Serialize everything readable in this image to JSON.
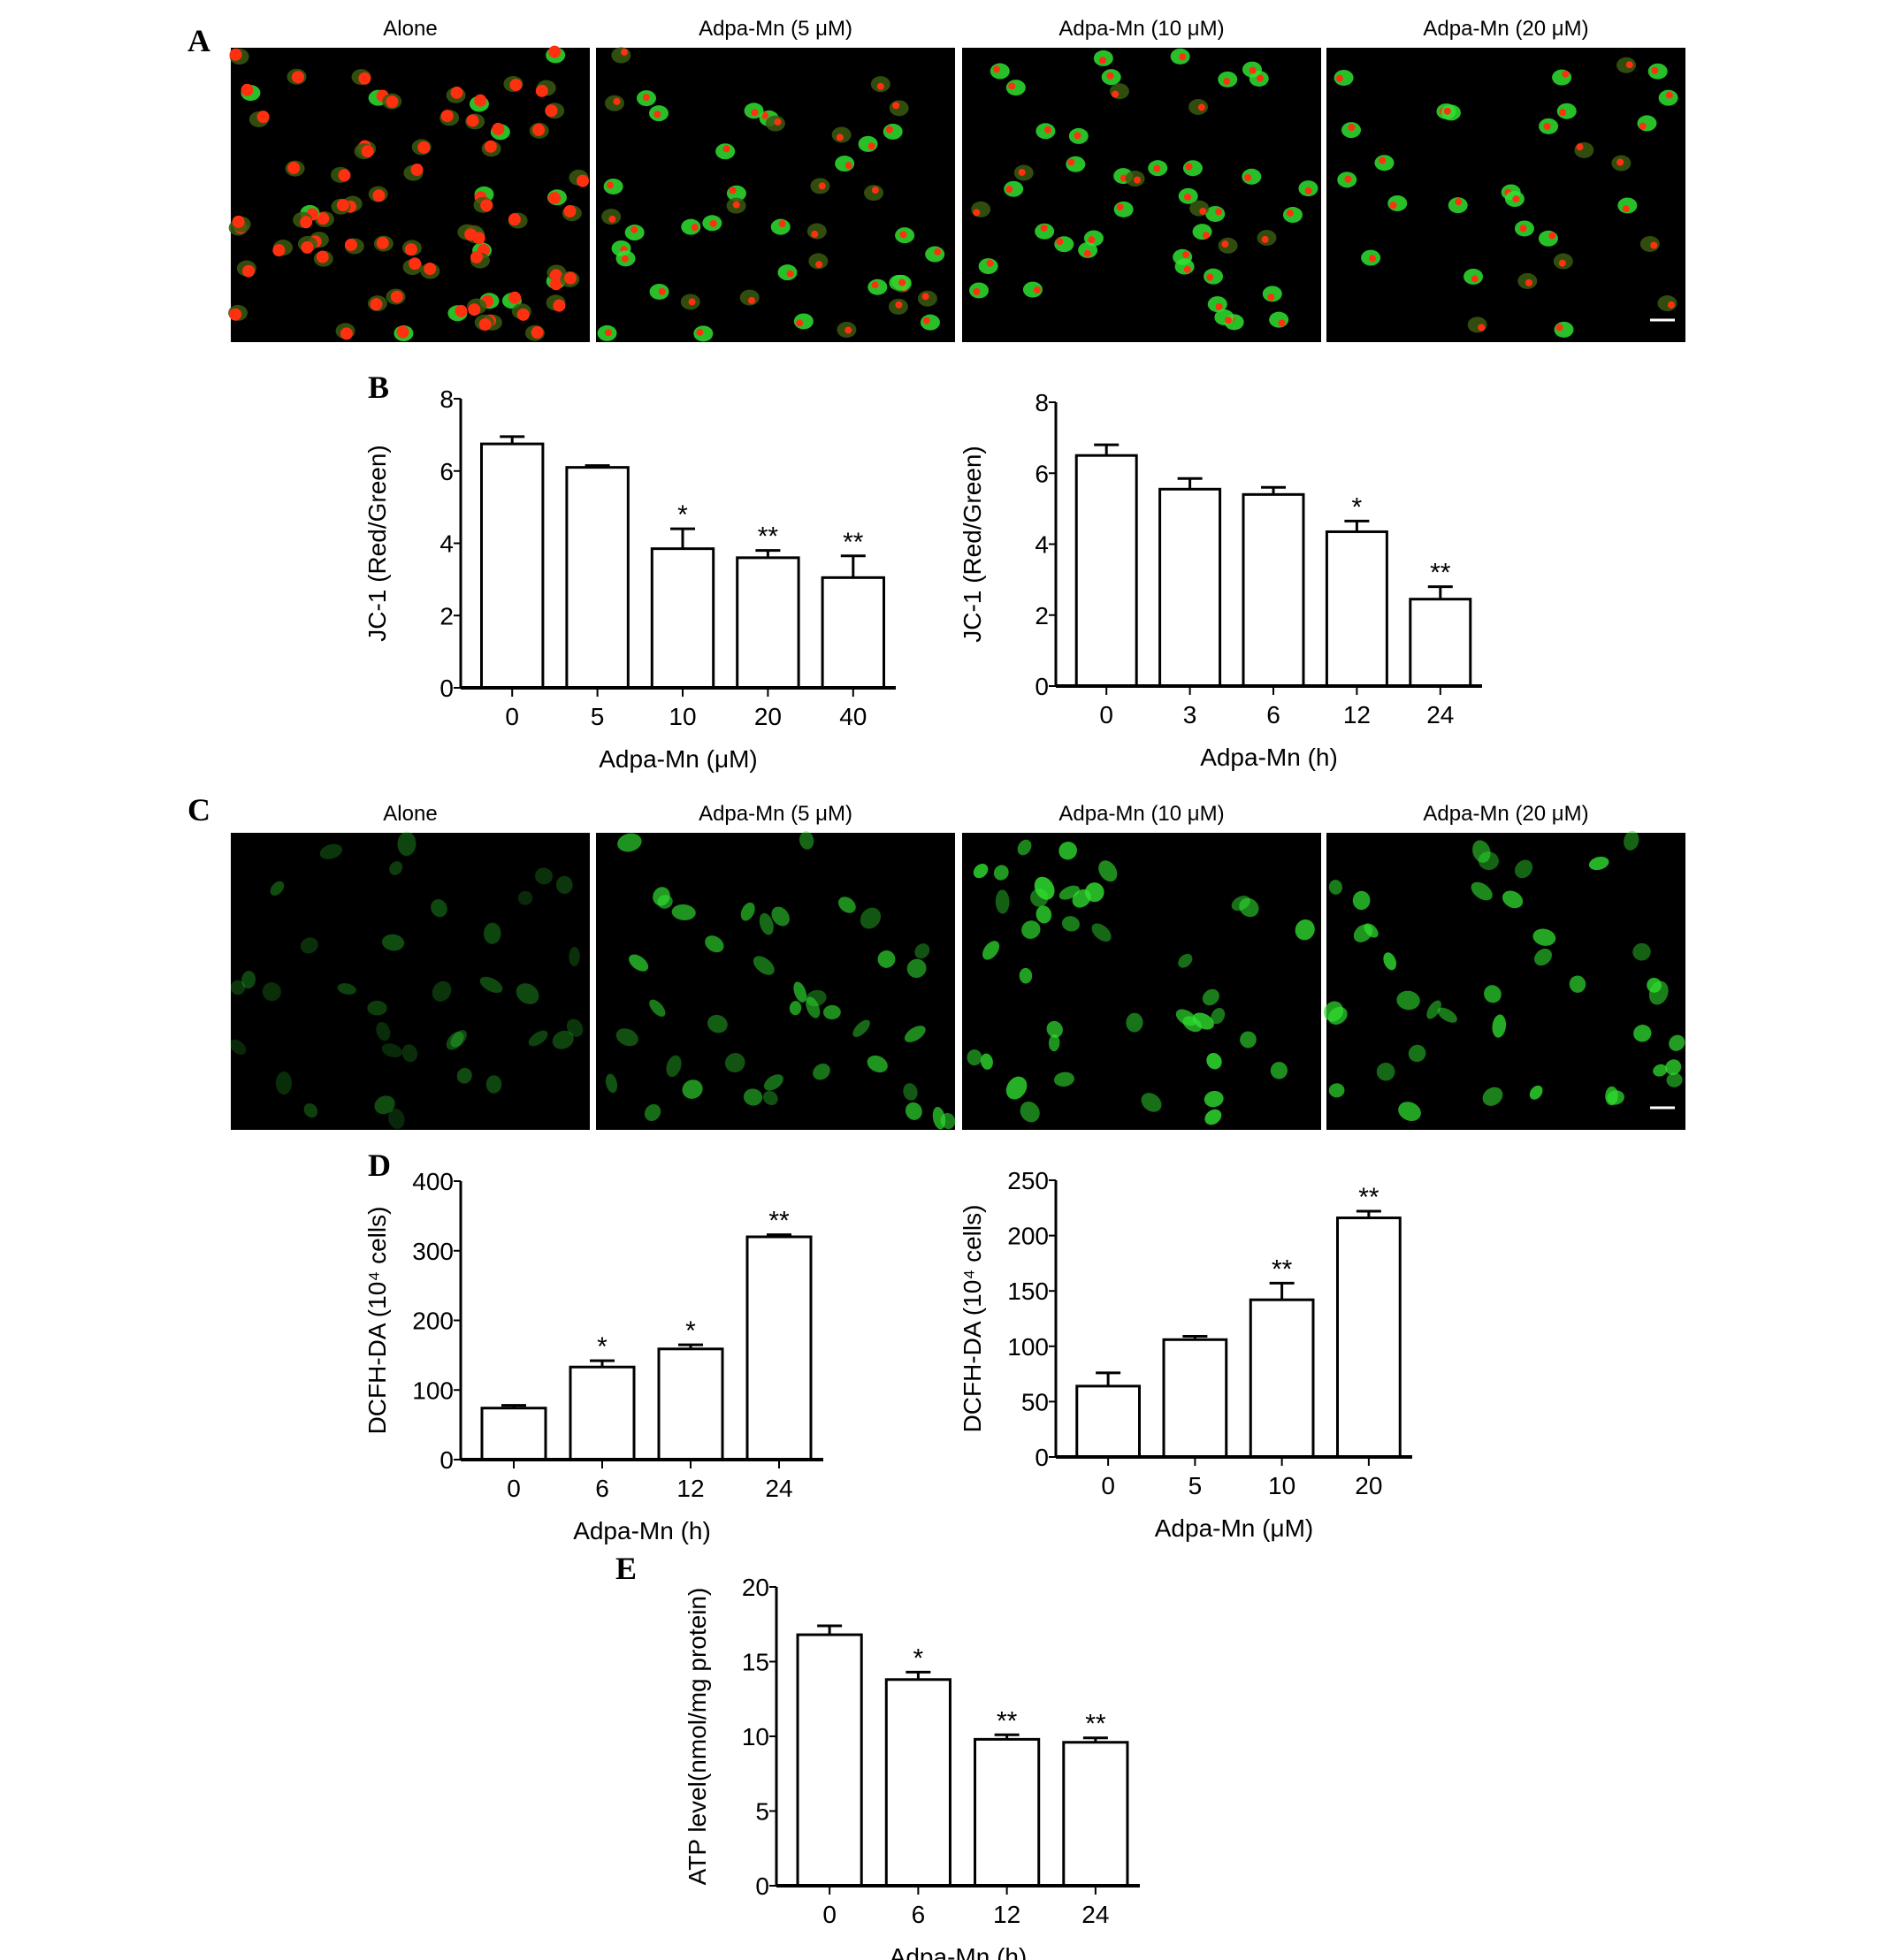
{
  "panels": {
    "A": {
      "label": "A",
      "titles": [
        "Alone",
        "Adpa-Mn (5 μM)",
        "Adpa-Mn (10 μM)",
        "Adpa-Mn (20 μM)"
      ]
    },
    "B": {
      "label": "B"
    },
    "C": {
      "label": "C",
      "titles": [
        "Alone",
        "Adpa-Mn (5 μM)",
        "Adpa-Mn (10 μM)",
        "Adpa-Mn (20 μM)"
      ]
    },
    "D": {
      "label": "D"
    },
    "E": {
      "label": "E"
    }
  },
  "colors": {
    "bar_fill": "#ffffff",
    "stroke": "#000000",
    "micrograph_bg": "#000000",
    "red_stain": "#ff3010",
    "green_stain": "#30e030"
  },
  "chart_data": [
    {
      "id": "B1",
      "type": "bar",
      "categories": [
        "0",
        "5",
        "10",
        "20",
        "40"
      ],
      "values": [
        6.75,
        6.1,
        3.85,
        3.6,
        3.05
      ],
      "errors": [
        0.2,
        0.05,
        0.55,
        0.2,
        0.6
      ],
      "significance": [
        "",
        "",
        "*",
        "**",
        "**"
      ],
      "xlabel": "Adpa-Mn (μM)",
      "ylabel": "JC-1 (Red/Green)",
      "ylim": [
        0,
        8
      ],
      "yticks": [
        0,
        2,
        4,
        6,
        8
      ],
      "grid": false
    },
    {
      "id": "B2",
      "type": "bar",
      "categories": [
        "0",
        "3",
        "6",
        "12",
        "24"
      ],
      "values": [
        6.5,
        5.55,
        5.4,
        4.35,
        2.45
      ],
      "errors": [
        0.3,
        0.3,
        0.2,
        0.3,
        0.35
      ],
      "significance": [
        "",
        "",
        "",
        "*",
        "**"
      ],
      "xlabel": "Adpa-Mn (h)",
      "ylabel": "JC-1 (Red/Green)",
      "ylim": [
        0,
        8
      ],
      "yticks": [
        0,
        2,
        4,
        6,
        8
      ],
      "grid": false
    },
    {
      "id": "D1",
      "type": "bar",
      "categories": [
        "0",
        "6",
        "12",
        "24"
      ],
      "values": [
        74,
        133,
        159,
        320
      ],
      "errors": [
        4,
        9,
        6,
        3
      ],
      "significance": [
        "",
        "*",
        "*",
        "**"
      ],
      "xlabel": "Adpa-Mn (h)",
      "ylabel": "DCFH-DA (10⁴ cells)",
      "ylim": [
        0,
        400
      ],
      "yticks": [
        0,
        100,
        200,
        300,
        400
      ],
      "grid": false
    },
    {
      "id": "D2",
      "type": "bar",
      "categories": [
        "0",
        "5",
        "10",
        "20"
      ],
      "values": [
        64,
        106,
        142,
        216
      ],
      "errors": [
        12,
        3,
        15,
        6
      ],
      "significance": [
        "",
        "",
        "**",
        "**"
      ],
      "xlabel": "Adpa-Mn (μM)",
      "ylabel": "DCFH-DA (10⁴ cells)",
      "ylim": [
        0,
        250
      ],
      "yticks": [
        0,
        50,
        100,
        150,
        200,
        250
      ],
      "grid": false
    },
    {
      "id": "E",
      "type": "bar",
      "categories": [
        "0",
        "6",
        "12",
        "24"
      ],
      "values": [
        16.8,
        13.8,
        9.8,
        9.6
      ],
      "errors": [
        0.6,
        0.5,
        0.3,
        0.3
      ],
      "significance": [
        "",
        "*",
        "**",
        "**"
      ],
      "xlabel": "Adpa-Mn (h)",
      "ylabel": "ATP level(nmol/mg protein)",
      "ylim": [
        0,
        20
      ],
      "yticks": [
        0,
        5,
        10,
        15,
        20
      ],
      "grid": false
    }
  ]
}
